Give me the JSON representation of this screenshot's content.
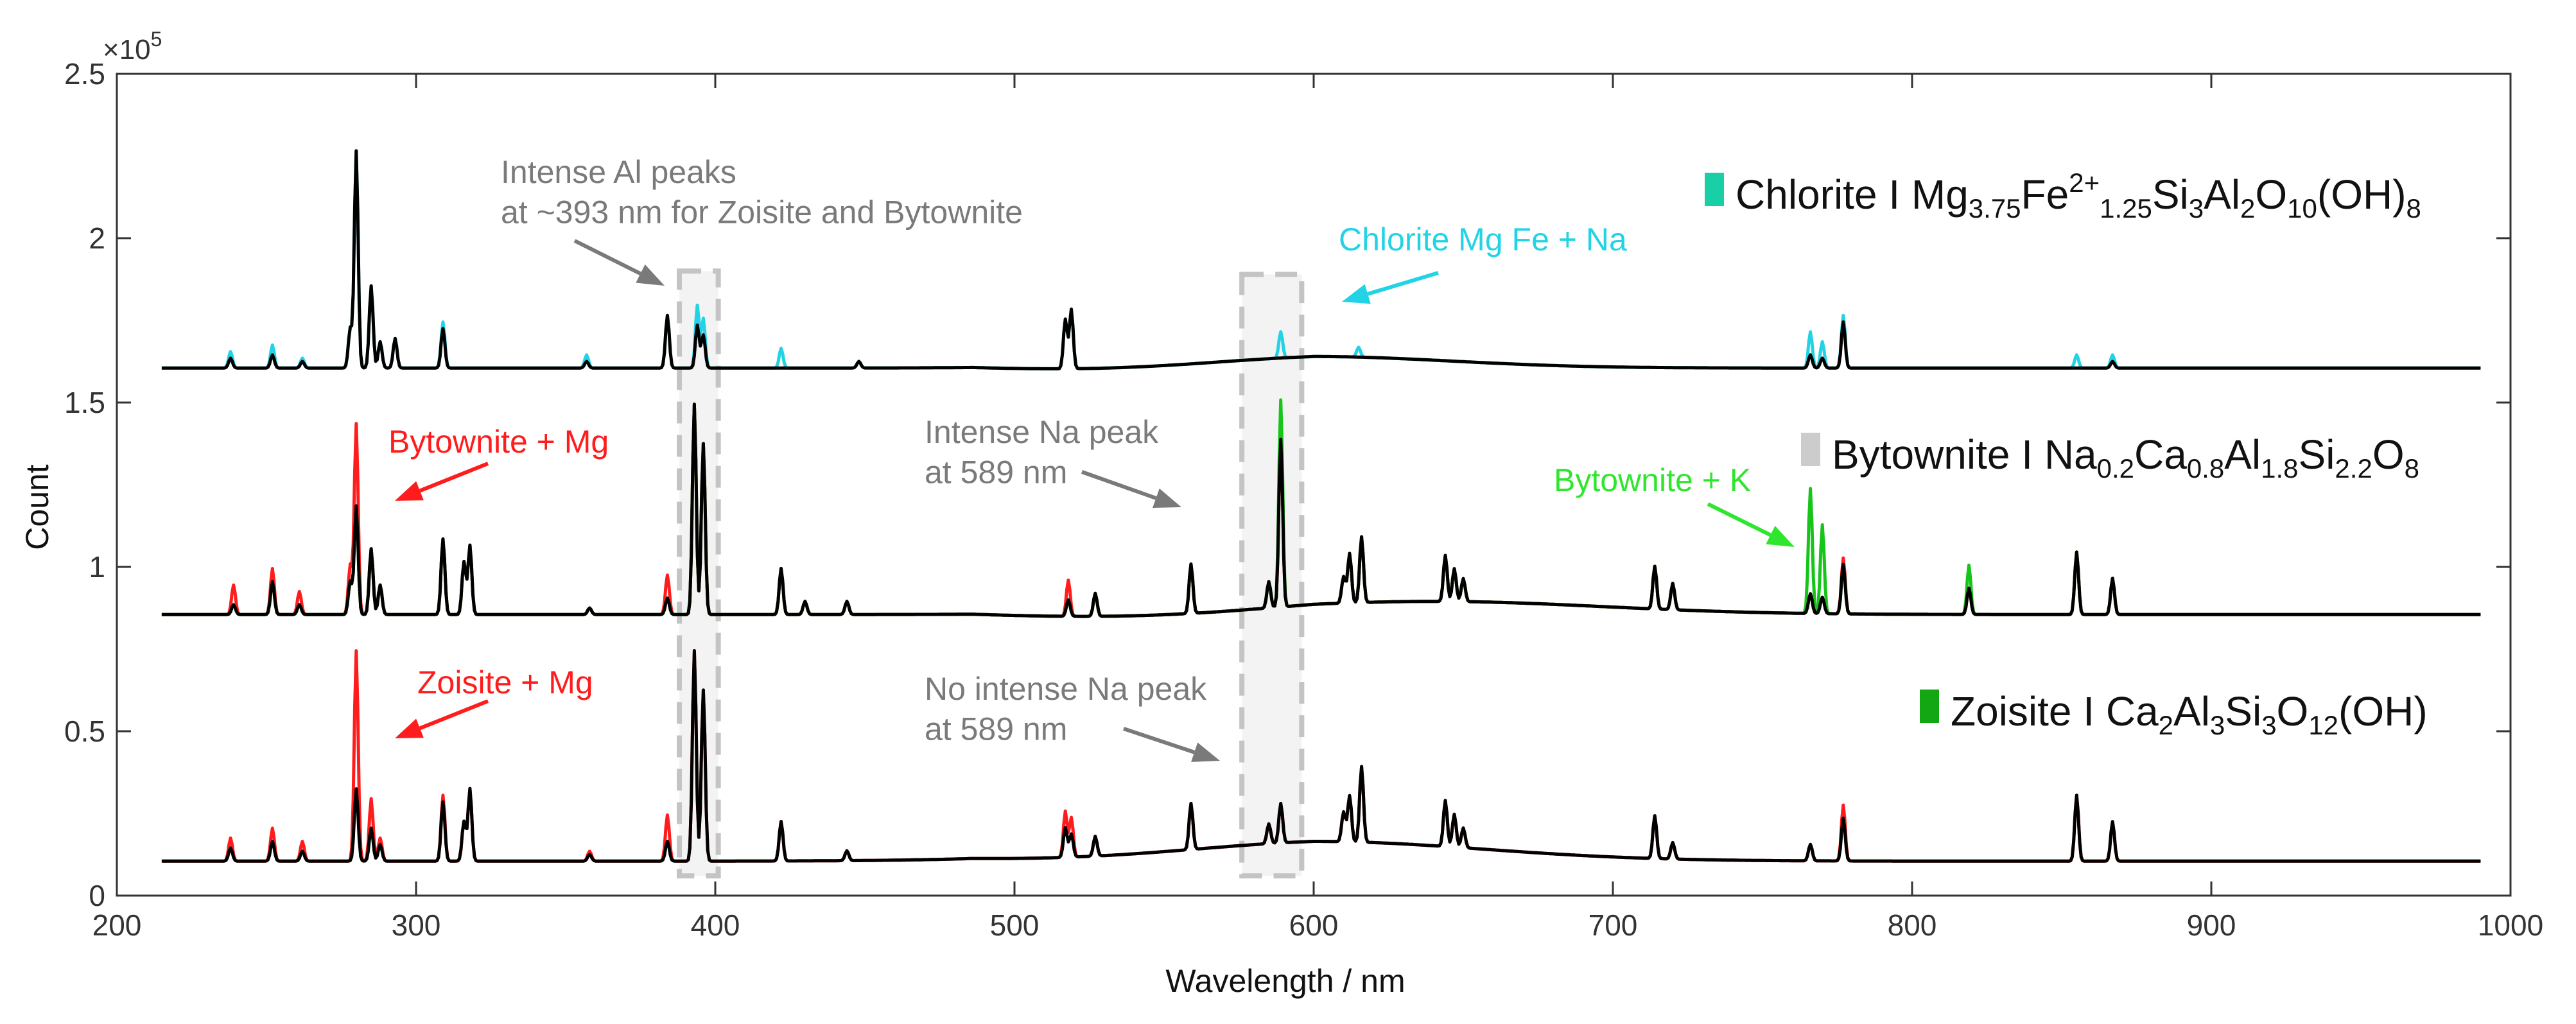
{
  "chart_data": {
    "type": "line",
    "title": "",
    "xlabel": "Wavelength / nm",
    "ylabel": "Count",
    "xlim": [
      200,
      1000
    ],
    "ylim": [
      0,
      2.5
    ],
    "y_exponent_label": "×10",
    "y_exponent_power": "5",
    "x_ticks": [
      200,
      300,
      400,
      500,
      600,
      700,
      800,
      900,
      1000
    ],
    "y_ticks": [
      {
        "value": 0,
        "label": "0"
      },
      {
        "value": 0.5,
        "label": "0.5"
      },
      {
        "value": 1,
        "label": "1"
      },
      {
        "value": 1.5,
        "label": "1.5"
      },
      {
        "value": 2,
        "label": "2"
      },
      {
        "value": 2.5,
        "label": "2.5"
      }
    ],
    "grid": false,
    "colors": {
      "black": "#000000",
      "cyan": "#22d3e6",
      "red": "#ff1c1c",
      "green": "#16c41a",
      "green_bright": "#2fe62f",
      "grey": "#7a7a7a",
      "teal_marker": "#19cfa6",
      "grey_marker": "#cccccc",
      "green_marker": "#13a813"
    },
    "series": [
      {
        "name": "Chlorite",
        "baseline": 1.605,
        "color": "#000000",
        "overlay_color": "#22d3e6",
        "peaks": [
          [
            238,
            0.03,
            0.02
          ],
          [
            252,
            0.04,
            0.03
          ],
          [
            262,
            0.02,
            0.01
          ],
          [
            278,
            0.12,
            0.0
          ],
          [
            280,
            0.66,
            0.0
          ],
          [
            285,
            0.25,
            0.0
          ],
          [
            288,
            0.08,
            0.0
          ],
          [
            293,
            0.09,
            0.0
          ],
          [
            309,
            0.12,
            0.02
          ],
          [
            357,
            0.02,
            0.02
          ],
          [
            384,
            0.16,
            0.0
          ],
          [
            394,
            0.13,
            0.06
          ],
          [
            396,
            0.1,
            0.05
          ],
          [
            422,
            0.0,
            0.06
          ],
          [
            448,
            0.02,
            0.0
          ],
          [
            517,
            0.15,
            0.0
          ],
          [
            519,
            0.18,
            0.0
          ],
          [
            589,
            0.0,
            0.08
          ],
          [
            615,
            0.0,
            0.03
          ],
          [
            766,
            0.04,
            0.07
          ],
          [
            770,
            0.03,
            0.05
          ],
          [
            777,
            0.14,
            0.02
          ],
          [
            855,
            0.0,
            0.04
          ],
          [
            867,
            0.02,
            0.02
          ]
        ],
        "hump": {
          "center": 600,
          "width": 65,
          "height": 0.035
        }
      },
      {
        "name": "Bytownite",
        "baseline": 0.855,
        "color": "#000000",
        "overlay_color": "#16c41a",
        "overlay2_color": "#ff1c1c",
        "peaks": [
          [
            239,
            0.03,
            0.0,
            0.06
          ],
          [
            252,
            0.1,
            0.0,
            0.04
          ],
          [
            261,
            0.03,
            0.0,
            0.04
          ],
          [
            278,
            0.1,
            0.0,
            0.05
          ],
          [
            280,
            0.33,
            0.0,
            0.25
          ],
          [
            285,
            0.2,
            0.0,
            0.0
          ],
          [
            288,
            0.09,
            0.0,
            0.0
          ],
          [
            309,
            0.23,
            0.0,
            0.0
          ],
          [
            316,
            0.16,
            0.0,
            0.0
          ],
          [
            318,
            0.21,
            0.0,
            0.0
          ],
          [
            358,
            0.02,
            0.0,
            0.0
          ],
          [
            384,
            0.05,
            0.0,
            0.07
          ],
          [
            393,
            0.64,
            0.0,
            0.0
          ],
          [
            396,
            0.52,
            0.0,
            0.0
          ],
          [
            422,
            0.14,
            0.0,
            0.0
          ],
          [
            430,
            0.04,
            0.0,
            0.0
          ],
          [
            444,
            0.04,
            0.0,
            0.0
          ],
          [
            518,
            0.05,
            0.0,
            0.06
          ],
          [
            527,
            0.07,
            0.0,
            0.0
          ],
          [
            559,
            0.15,
            0.0,
            0.0
          ],
          [
            585,
            0.08,
            0.0,
            0.0
          ],
          [
            589,
            0.51,
            0.12,
            0.0
          ],
          [
            610,
            0.08,
            0.0,
            0.0
          ],
          [
            612,
            0.15,
            0.0,
            0.0
          ],
          [
            616,
            0.2,
            0.0,
            0.0
          ],
          [
            644,
            0.14,
            0.0,
            0.0
          ],
          [
            647,
            0.1,
            0.0,
            0.0
          ],
          [
            650,
            0.07,
            0.0,
            0.0
          ],
          [
            714,
            0.13,
            0.0,
            0.0
          ],
          [
            720,
            0.08,
            0.0,
            0.0
          ],
          [
            766,
            0.06,
            0.32,
            0.0
          ],
          [
            770,
            0.05,
            0.22,
            0.0
          ],
          [
            777,
            0.15,
            0.0,
            0.02
          ],
          [
            819,
            0.08,
            0.07,
            0.0
          ],
          [
            855,
            0.19,
            0.0,
            0.0
          ],
          [
            867,
            0.11,
            0.0,
            0.0
          ]
        ],
        "hump": {
          "center": 640,
          "width": 80,
          "height": 0.04
        }
      },
      {
        "name": "Zoisite",
        "baseline": 0.105,
        "color": "#000000",
        "overlay_color": "#ff1c1c",
        "peaks": [
          [
            238,
            0.04,
            0.03
          ],
          [
            252,
            0.06,
            0.04
          ],
          [
            262,
            0.03,
            0.03
          ],
          [
            280,
            0.22,
            0.42
          ],
          [
            285,
            0.1,
            0.09
          ],
          [
            288,
            0.05,
            0.02
          ],
          [
            309,
            0.18,
            0.02
          ],
          [
            316,
            0.12,
            0.0
          ],
          [
            318,
            0.22,
            0.0
          ],
          [
            358,
            0.02,
            0.01
          ],
          [
            384,
            0.06,
            0.08
          ],
          [
            393,
            0.64,
            0.0
          ],
          [
            396,
            0.52,
            0.0
          ],
          [
            422,
            0.12,
            0.0
          ],
          [
            444,
            0.03,
            0.0
          ],
          [
            517,
            0.09,
            0.05
          ],
          [
            519,
            0.07,
            0.05
          ],
          [
            527,
            0.06,
            0.0
          ],
          [
            559,
            0.14,
            0.0
          ],
          [
            585,
            0.06,
            0.0
          ],
          [
            589,
            0.12,
            0.0
          ],
          [
            610,
            0.09,
            0.0
          ],
          [
            612,
            0.14,
            0.0
          ],
          [
            616,
            0.23,
            0.0
          ],
          [
            644,
            0.14,
            0.0
          ],
          [
            647,
            0.1,
            0.0
          ],
          [
            650,
            0.06,
            0.0
          ],
          [
            714,
            0.13,
            0.0
          ],
          [
            720,
            0.05,
            0.0
          ],
          [
            766,
            0.05,
            0.0
          ],
          [
            777,
            0.13,
            0.04
          ],
          [
            855,
            0.2,
            0.0
          ],
          [
            867,
            0.12,
            0.0
          ]
        ],
        "hump": {
          "center": 600,
          "width": 80,
          "height": 0.06
        }
      }
    ],
    "legend": [
      {
        "name": "Chlorite",
        "marker_color": "#19cfa6",
        "text_main": "Chlorite I Mg",
        "parts": [
          {
            "t": "Chlorite I Mg",
            "s": ""
          },
          {
            "t": "3.75",
            "s": "sub"
          },
          {
            "t": "Fe",
            "s": ""
          },
          {
            "t": "2+",
            "s": "sup"
          },
          {
            "t": "1.25",
            "s": "sub"
          },
          {
            "t": "Si",
            "s": ""
          },
          {
            "t": "3",
            "s": "sub"
          },
          {
            "t": "Al",
            "s": ""
          },
          {
            "t": "2",
            "s": "sub"
          },
          {
            "t": "O",
            "s": ""
          },
          {
            "t": "10",
            "s": "sub"
          },
          {
            "t": "(OH)",
            "s": ""
          },
          {
            "t": "8",
            "s": "sub"
          }
        ]
      },
      {
        "name": "Bytownite",
        "marker_color": "#cccccc",
        "parts": [
          {
            "t": "Bytownite I Na",
            "s": ""
          },
          {
            "t": "0.2",
            "s": "sub"
          },
          {
            "t": "Ca",
            "s": ""
          },
          {
            "t": "0.8",
            "s": "sub"
          },
          {
            "t": "Al",
            "s": ""
          },
          {
            "t": "1.8",
            "s": "sub"
          },
          {
            "t": "Si",
            "s": ""
          },
          {
            "t": "2.2",
            "s": "sub"
          },
          {
            "t": "O",
            "s": ""
          },
          {
            "t": "8",
            "s": "sub"
          }
        ]
      },
      {
        "name": "Zoisite",
        "marker_color": "#13a813",
        "parts": [
          {
            "t": "Zoisite I Ca",
            "s": ""
          },
          {
            "t": "2",
            "s": "sub"
          },
          {
            "t": "Al",
            "s": ""
          },
          {
            "t": "3",
            "s": "sub"
          },
          {
            "t": "Si",
            "s": ""
          },
          {
            "t": "3",
            "s": "sub"
          },
          {
            "t": "O",
            "s": ""
          },
          {
            "t": "12",
            "s": "sub"
          },
          {
            "t": "(OH)",
            "s": ""
          }
        ]
      }
    ],
    "highlight_boxes": [
      {
        "name": "al-peak-box",
        "x_range": [
          388,
          401
        ],
        "y_range": [
          0.06,
          1.9
        ]
      },
      {
        "name": "na-peak-box",
        "x_range": [
          576,
          596
        ],
        "y_range": [
          0.06,
          1.89
        ]
      }
    ],
    "annotations": [
      {
        "name": "al-peaks-note",
        "color": "#7a7a7a",
        "lines": [
          "Intense Al peaks",
          "at ~393 nm for Zoisite and Bytownite"
        ]
      },
      {
        "name": "chlorite-mgfe-na-note",
        "color": "#22d3e6",
        "lines": [
          "Chlorite Mg Fe + Na"
        ]
      },
      {
        "name": "bytownite-mg-note",
        "color": "#ff1c1c",
        "lines": [
          "Bytownite + Mg"
        ]
      },
      {
        "name": "intense-na-note",
        "color": "#7a7a7a",
        "lines": [
          "Intense Na peak",
          "at 589 nm"
        ]
      },
      {
        "name": "bytownite-k-note",
        "color": "#2fe62f",
        "lines": [
          "Bytownite + K"
        ]
      },
      {
        "name": "zoisite-mg-note",
        "color": "#ff1c1c",
        "lines": [
          "Zoisite + Mg"
        ]
      },
      {
        "name": "no-intense-na-note",
        "color": "#7a7a7a",
        "lines": [
          "No intense Na peak",
          "at 589 nm"
        ]
      }
    ]
  }
}
